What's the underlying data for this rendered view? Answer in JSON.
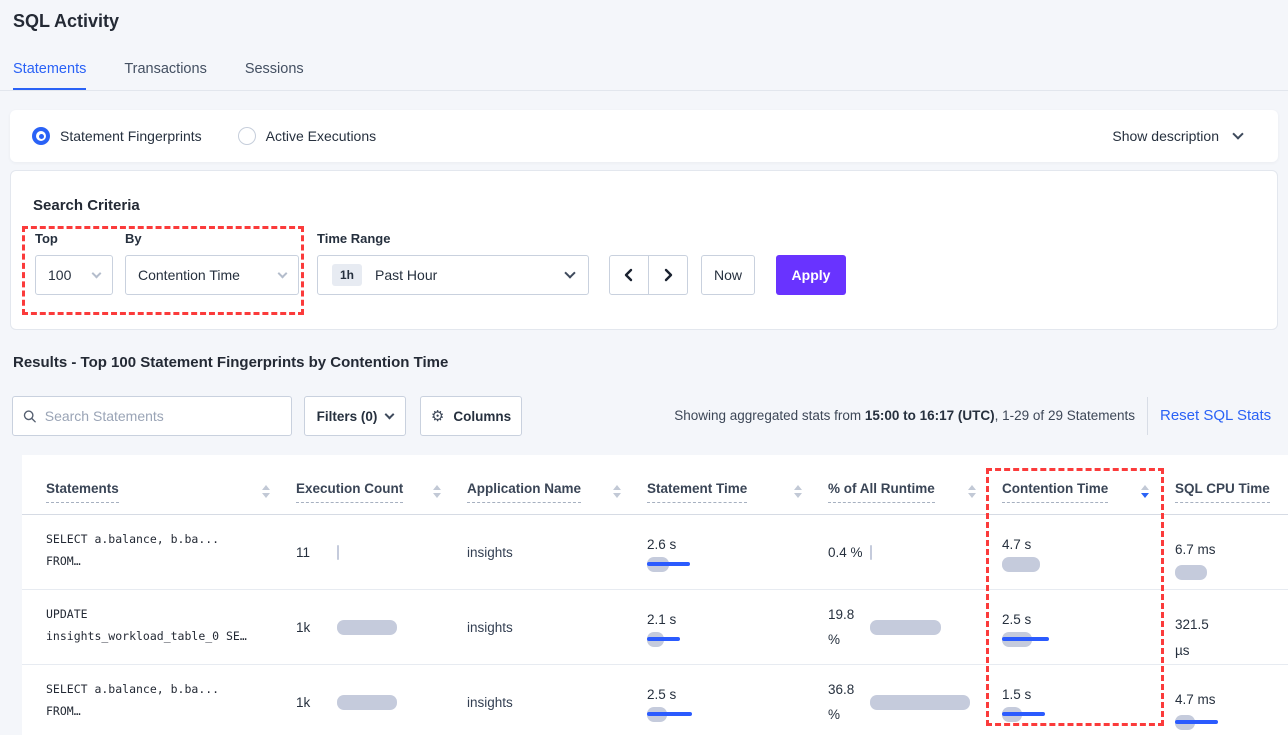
{
  "header": {
    "title": "SQL Activity"
  },
  "tabs": [
    {
      "label": "Statements",
      "active": true
    },
    {
      "label": "Transactions",
      "active": false
    },
    {
      "label": "Sessions",
      "active": false
    }
  ],
  "view_toggle": {
    "options": [
      {
        "label": "Statement Fingerprints",
        "selected": true
      },
      {
        "label": "Active Executions",
        "selected": false
      }
    ],
    "show_description": "Show description"
  },
  "search_criteria": {
    "heading": "Search Criteria",
    "top_label": "Top",
    "top_value": "100",
    "by_label": "By",
    "by_value": "Contention Time",
    "time_range_label": "Time Range",
    "time_badge": "1h",
    "time_value": "Past Hour",
    "now_label": "Now",
    "apply_label": "Apply"
  },
  "results": {
    "heading": "Results - Top 100 Statement Fingerprints by Contention Time",
    "search_placeholder": "Search Statements",
    "filters_label": "Filters (0)",
    "columns_label": "Columns",
    "showing_prefix": "Showing aggregated stats from ",
    "showing_bold": "15:00 to 16:17 (UTC)",
    "showing_suffix": ", 1-29 of 29 Statements",
    "reset_label": "Reset SQL Stats"
  },
  "table": {
    "headers": [
      {
        "label": "Statements"
      },
      {
        "label": "Execution Count"
      },
      {
        "label": "Application Name"
      },
      {
        "label": "Statement Time"
      },
      {
        "label": "% of All Runtime"
      },
      {
        "label": "Contention Time",
        "sorted": "desc"
      },
      {
        "label": "SQL CPU Time"
      }
    ],
    "rows": [
      {
        "statement_line1": "SELECT a.balance, b.ba...",
        "statement_line2": "FROM…",
        "execution_count": "11",
        "application": "insights",
        "statement_time": "2.6 s",
        "pct_runtime": "0.4 %",
        "contention_time": "4.7 s",
        "cpu_time": "6.7 ms",
        "bars": {
          "exec": {
            "gray": 2
          },
          "stmt": {
            "gray": 22,
            "blue": 43
          },
          "pct": {
            "gray": 2
          },
          "cont": {
            "gray": 38
          },
          "cpu": {
            "gray": 32
          }
        }
      },
      {
        "statement_line1": "UPDATE",
        "statement_line2": "insights_workload_table_0 SE…",
        "execution_count": "1k",
        "application": "insights",
        "statement_time": "2.1 s",
        "pct_runtime": "19.8 %",
        "contention_time": "2.5 s",
        "cpu_time": "321.5 µs",
        "bars": {
          "exec": {
            "gray": 60
          },
          "stmt": {
            "gray": 17,
            "blue": 33
          },
          "pct": {
            "gray": 71
          },
          "cont": {
            "gray": 30,
            "blue": 47
          },
          "cpu": {
            "vtick": true
          }
        }
      },
      {
        "statement_line1": "SELECT a.balance, b.ba...",
        "statement_line2": "FROM…",
        "execution_count": "1k",
        "application": "insights",
        "statement_time": "2.5 s",
        "pct_runtime": "36.8 %",
        "contention_time": "1.5 s",
        "cpu_time": "4.7 ms",
        "bars": {
          "exec": {
            "gray": 60
          },
          "stmt": {
            "gray": 20,
            "blue": 45
          },
          "pct": {
            "gray": 100
          },
          "cont": {
            "gray": 20,
            "blue": 43
          },
          "cpu": {
            "gray": 20,
            "blue": 43
          }
        }
      }
    ]
  },
  "colors": {
    "accent_blue": "#2A62F6",
    "apply_purple": "#6933FF",
    "annotation_red": "#FB3B3B",
    "bar_gray": "#C5CBDC",
    "bar_blue": "#2B5BFE"
  }
}
